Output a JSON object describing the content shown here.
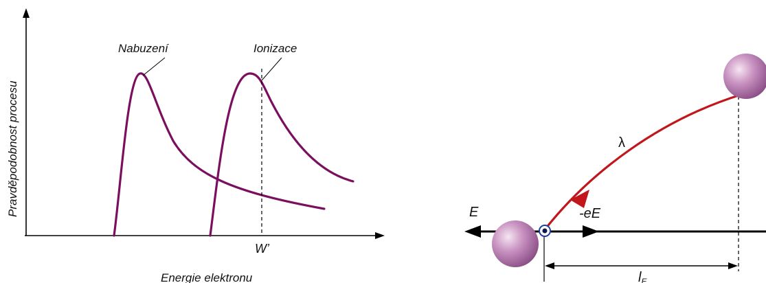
{
  "left_figure": {
    "y_axis_label": "Pravděpodobnost procesu",
    "x_axis_label": "Energie elektronu",
    "curve_excitation_label": "Nabuzení",
    "curve_ionization_label": "Ionizace",
    "threshold_label": "W’",
    "curve_color": "#7a0f5f"
  },
  "right_figure": {
    "field_label": "E",
    "force_label": "-eE",
    "mean_free_path_label": "λ",
    "distance_label": "l",
    "distance_subscript": "E",
    "trajectory_color": "#c0161c",
    "sphere_color": "#b77cb1"
  }
}
